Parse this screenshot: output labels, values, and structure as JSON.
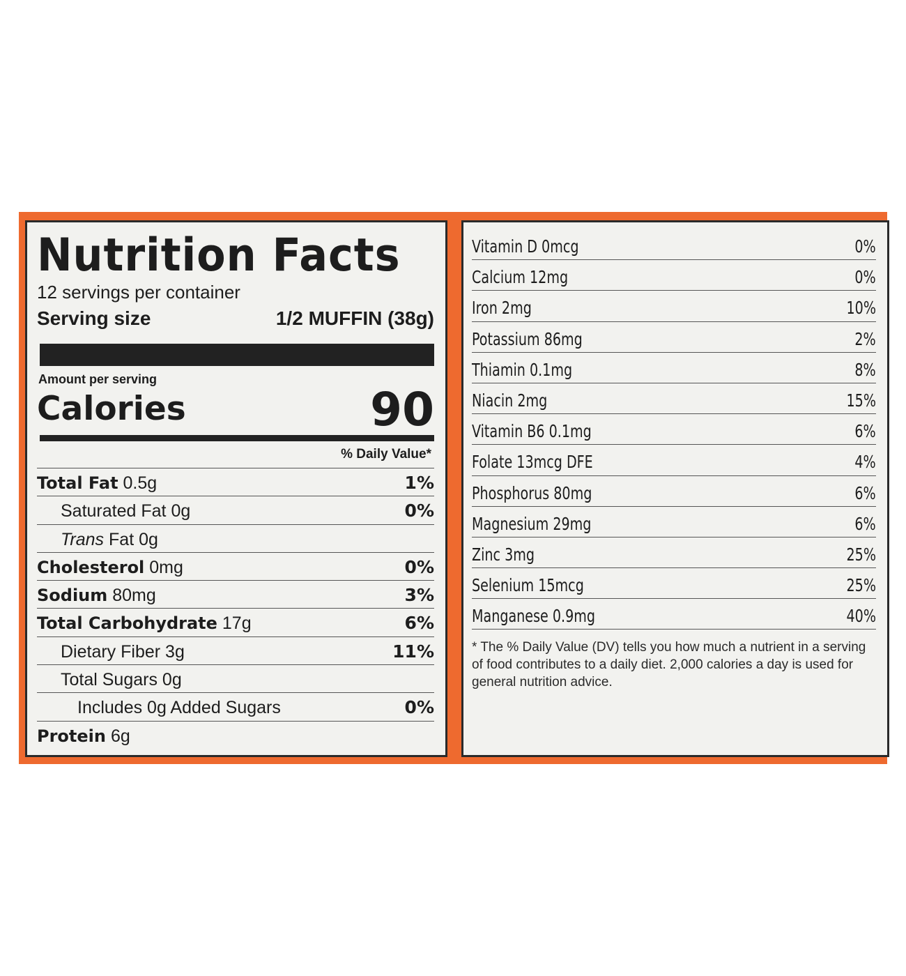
{
  "label": {
    "title": "Nutrition Facts",
    "servings_per_container": "12 servings per container",
    "serving_size_label": "Serving size",
    "serving_size_value": "1/2 MUFFIN (38g)",
    "amount_per_serving": "Amount per serving",
    "calories_label": "Calories",
    "calories_value": "90",
    "daily_value_header": "% Daily Value*"
  },
  "nutrients": [
    {
      "name": "Total Fat",
      "amount": "0.5g",
      "dv": "1%"
    },
    {
      "name": "Saturated Fat",
      "amount": "0g",
      "dv": "0%"
    },
    {
      "name": "Trans",
      "amount": "Fat 0g",
      "dv": ""
    },
    {
      "name": "Cholesterol",
      "amount": "0mg",
      "dv": "0%"
    },
    {
      "name": "Sodium",
      "amount": "80mg",
      "dv": "3%"
    },
    {
      "name": "Total Carbohydrate",
      "amount": "17g",
      "dv": "6%"
    },
    {
      "name": "Dietary Fiber",
      "amount": "3g",
      "dv": "11%"
    },
    {
      "name": "Total Sugars",
      "amount": "0g",
      "dv": ""
    },
    {
      "name": "Includes 0g Added Sugars",
      "amount": "",
      "dv": "0%"
    },
    {
      "name": "Protein",
      "amount": "6g",
      "dv": ""
    }
  ],
  "vitamins": [
    {
      "name": "Vitamin D 0mcg",
      "dv": "0%"
    },
    {
      "name": "Calcium 12mg",
      "dv": "0%"
    },
    {
      "name": "Iron 2mg",
      "dv": "10%"
    },
    {
      "name": "Potassium 86mg",
      "dv": "2%"
    },
    {
      "name": "Thiamin 0.1mg",
      "dv": "8%"
    },
    {
      "name": "Niacin 2mg",
      "dv": "15%"
    },
    {
      "name": "Vitamin B6 0.1mg",
      "dv": "6%"
    },
    {
      "name": "Folate 13mcg  DFE",
      "dv": "4%"
    },
    {
      "name": "Phosphorus 80mg",
      "dv": "6%"
    },
    {
      "name": "Magnesium 29mg",
      "dv": "6%"
    },
    {
      "name": "Zinc 3mg",
      "dv": "25%"
    },
    {
      "name": "Selenium 15mcg",
      "dv": "25%"
    },
    {
      "name": "Manganese 0.9mg",
      "dv": "40%"
    }
  ],
  "footnote": "* The % Daily Value (DV) tells you how much a nutrient in a serving of food contributes to a daily diet. 2,000 calories a day is used for general nutrition advice.",
  "colors": {
    "band": "#ee6a2f",
    "panel": "#f2f2ef",
    "ink": "#1d1d1d"
  }
}
